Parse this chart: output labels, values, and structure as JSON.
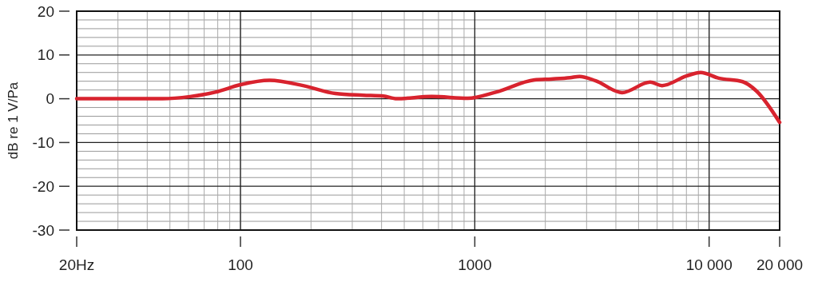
{
  "chart_data": {
    "type": "line",
    "ylabel": "dB re 1 V/Pa",
    "log": "x",
    "x": [
      20,
      46.5,
      61,
      78,
      100,
      133,
      185,
      254,
      334,
      407,
      465,
      655,
      934,
      1230,
      1800,
      2120,
      2550,
      2800,
      3280,
      4250,
      5600,
      6300,
      8000,
      9200,
      11000,
      13900,
      15900,
      20000
    ],
    "series": [
      {
        "color": "#d8232e",
        "values": [
          0,
          0,
          0.5,
          1.5,
          3.2,
          4.2,
          3.0,
          1.2,
          0.8,
          0.6,
          0,
          0.5,
          0.1,
          1.5,
          4.3,
          4.5,
          4.8,
          5.1,
          4.1,
          1.4,
          3.8,
          3.0,
          5.2,
          6,
          4.7,
          3.9,
          1.8,
          -5.4
        ]
      }
    ],
    "xlim": [
      20,
      20000
    ],
    "xticks": [
      {
        "value": 20,
        "label": "20Hz"
      },
      100,
      1000,
      {
        "value": 10000,
        "label": "10 000"
      },
      {
        "value": 20000,
        "label": "20 000"
      }
    ],
    "ylim": [
      -30,
      20
    ],
    "yticks": [
      -30,
      -20,
      -10,
      0,
      10,
      20
    ],
    "grid": true,
    "line_style": "solid",
    "marker": "none"
  }
}
